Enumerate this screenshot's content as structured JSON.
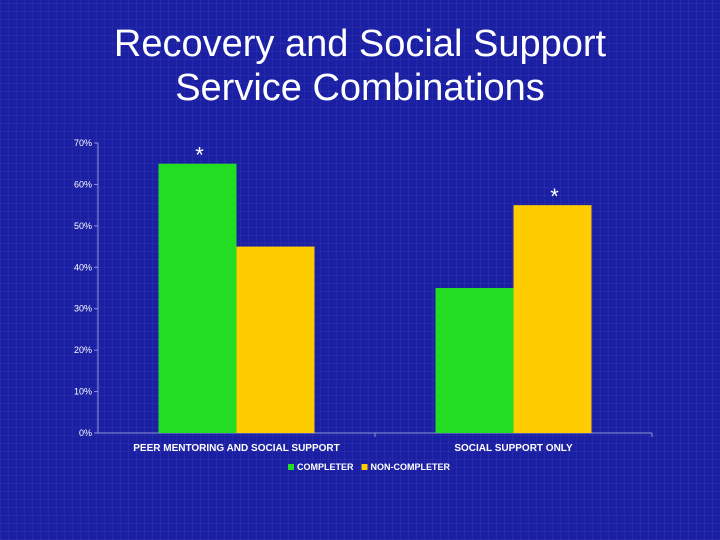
{
  "slide": {
    "title_line1": "Recovery and Social Support",
    "title_line2": "Service Combinations"
  },
  "colors": {
    "background": "#1a1fa3",
    "completer": "#22dd22",
    "non_completer": "#ffcc00",
    "text": "#ffffff"
  },
  "chart_data": {
    "type": "bar",
    "categories": [
      "PEER MENTORING AND SOCIAL SUPPORT",
      "SOCIAL SUPPORT ONLY"
    ],
    "series": [
      {
        "name": "COMPLETER",
        "values": [
          65,
          35
        ],
        "color": "#22dd22"
      },
      {
        "name": "NON-COMPLETER",
        "values": [
          45,
          55
        ],
        "color": "#ffcc00"
      }
    ],
    "ylim": [
      0,
      70
    ],
    "yticks": [
      0,
      10,
      20,
      30,
      40,
      50,
      60,
      70
    ],
    "ytick_labels": [
      "0%",
      "10%",
      "20%",
      "30%",
      "40%",
      "50%",
      "60%",
      "70%"
    ],
    "annotations": [
      {
        "text": "*",
        "category_index": 0,
        "series_index": 0
      },
      {
        "text": "*",
        "category_index": 1,
        "series_index": 1
      }
    ],
    "legend_position": "bottom",
    "grid": false
  }
}
